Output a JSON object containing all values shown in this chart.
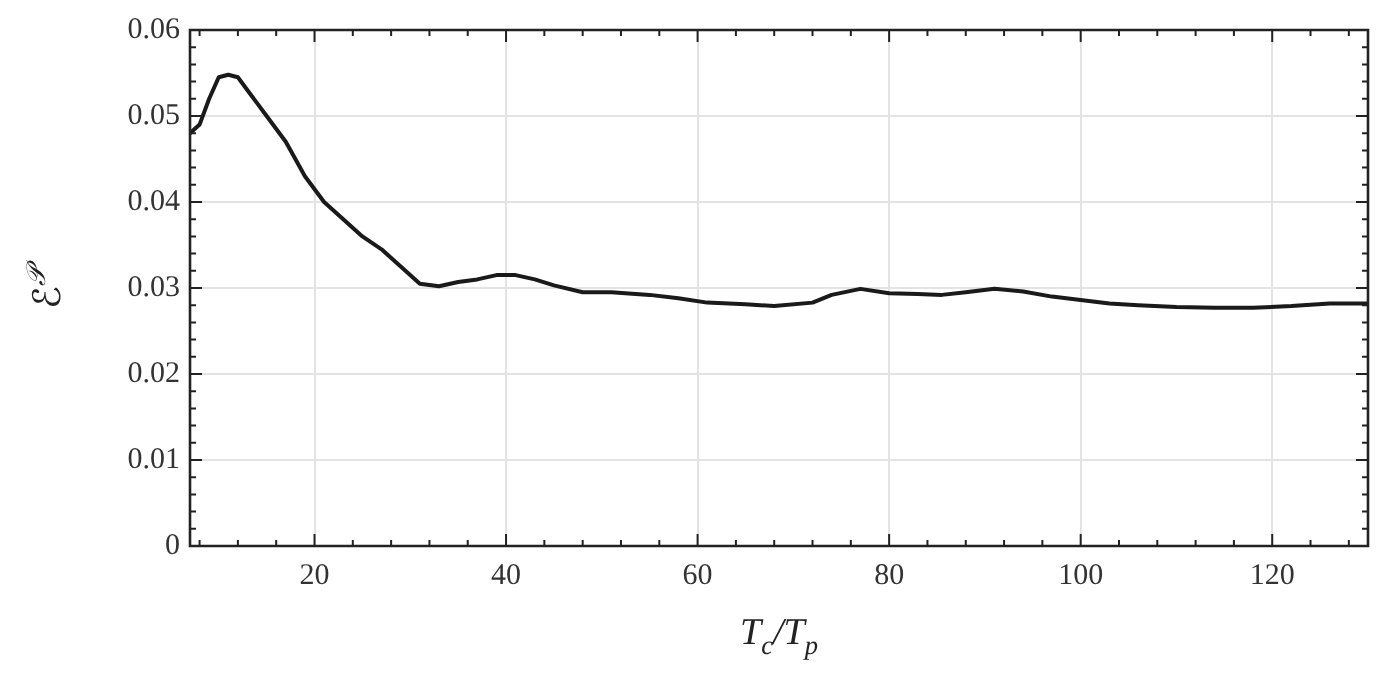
{
  "chart_data": {
    "type": "line",
    "xlabel": "T$_{c}$/T$_{p}$",
    "ylabel": "ℰ$^{𝒫}$",
    "x": [
      7,
      8,
      9,
      10,
      11,
      12,
      13,
      15,
      17,
      19,
      21,
      23,
      25,
      27,
      29,
      31,
      33,
      35,
      37,
      39,
      41,
      43,
      45,
      48,
      51,
      55,
      58,
      61,
      65,
      68,
      72,
      74,
      77,
      80,
      83,
      85.5,
      88,
      91,
      94,
      97,
      100,
      103,
      106,
      110,
      114,
      118,
      122,
      126,
      130
    ],
    "series": [
      {
        "color": "#1a1a1a",
        "values": [
          0.048,
          0.049,
          0.052,
          0.0545,
          0.0548,
          0.0545,
          0.053,
          0.05,
          0.047,
          0.043,
          0.04,
          0.038,
          0.036,
          0.0345,
          0.0325,
          0.0305,
          0.0302,
          0.0307,
          0.031,
          0.0315,
          0.0315,
          0.031,
          0.0303,
          0.0295,
          0.0295,
          0.0292,
          0.0288,
          0.0283,
          0.0281,
          0.0279,
          0.0283,
          0.0292,
          0.0299,
          0.0294,
          0.0293,
          0.0292,
          0.0295,
          0.0299,
          0.0296,
          0.029,
          0.0286,
          0.0282,
          0.028,
          0.0278,
          0.0277,
          0.0277,
          0.0279,
          0.0282,
          0.0282
        ]
      }
    ],
    "xlim": [
      7,
      130
    ],
    "xticks": [
      20,
      40,
      60,
      80,
      100,
      120
    ],
    "ylim": [
      0,
      0.06
    ],
    "yticks": [
      0,
      0.01,
      0.02,
      0.03,
      0.04,
      0.05,
      0.06
    ],
    "grid": true,
    "marker": "none",
    "line_style": "solid",
    "legend": false
  }
}
